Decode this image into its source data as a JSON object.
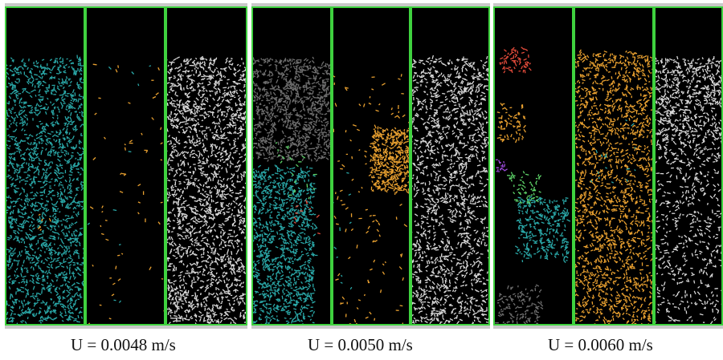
{
  "figure": {
    "captions": [
      "U = 0.0048 m/s",
      "U = 0.0050 m/s",
      "U = 0.0060 m/s"
    ]
  },
  "colors": {
    "frame": "#3fd23f",
    "background": "#000000",
    "teal": "#2aa7a7",
    "white": "#d8d8d8",
    "gray": "#6e6e6e",
    "orange": "#e8a030",
    "green": "#5fd66a",
    "red": "#e04a3a",
    "purple": "#9a4ad8"
  }
}
